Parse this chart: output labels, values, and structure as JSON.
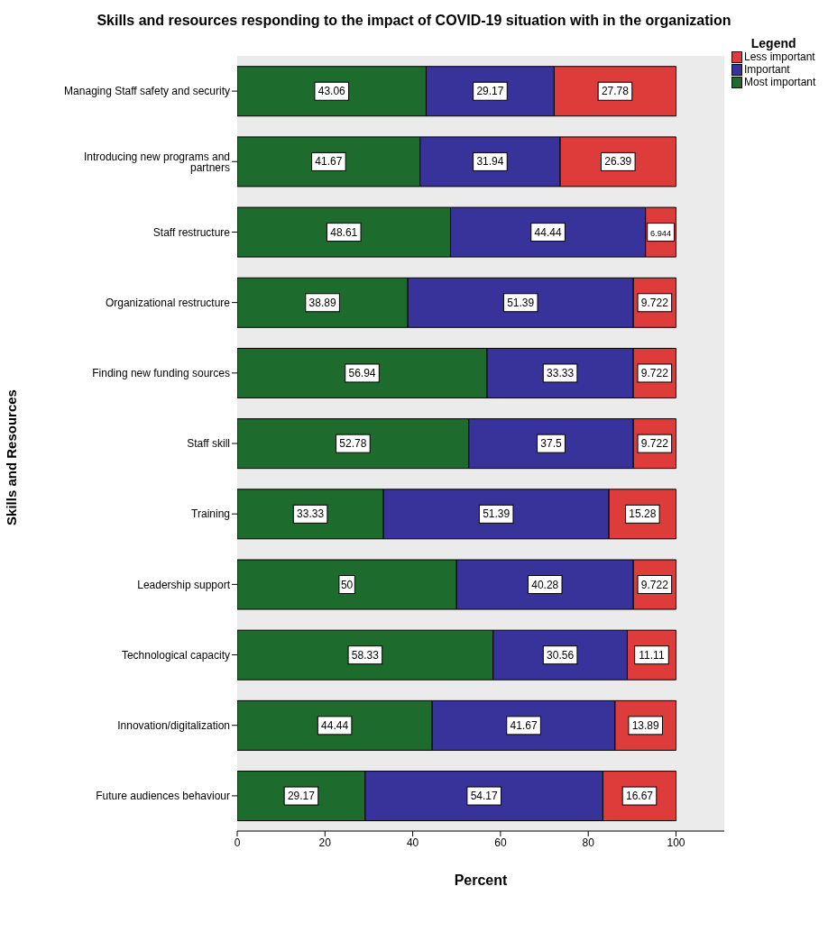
{
  "chart_data": {
    "type": "bar",
    "orientation": "horizontal",
    "stacked": true,
    "title": "Skills and resources responding to the impact of COVID-19 situation with in the organization",
    "xlabel": "Percent",
    "ylabel": "Skills and Resources",
    "legend_title": "Legend",
    "legend": "top right",
    "grid": false,
    "data_labels": true,
    "categories": [
      "Managing Staff safety and security",
      "Introducing new programs and partners",
      "Staff restructure",
      "Organizational restructure",
      "Finding new funding sources",
      "Staff skill",
      "Training",
      "Leadership support",
      "Technological capacity",
      "Innovation/digitalization",
      "Future audiences behaviour"
    ],
    "xlim": [
      0,
      111
    ],
    "xticks": [
      0,
      20,
      40,
      60,
      80,
      100
    ],
    "series": [
      {
        "name": "Most important",
        "color": "#1e6b2e",
        "values": [
          43.06,
          41.67,
          48.61,
          38.89,
          56.94,
          52.78,
          33.33,
          50,
          58.33,
          44.44,
          29.17
        ]
      },
      {
        "name": "Important",
        "color": "#38339a",
        "values": [
          29.17,
          31.94,
          44.44,
          51.39,
          33.33,
          37.5,
          51.39,
          40.28,
          30.56,
          41.67,
          54.17
        ]
      },
      {
        "name": "Less important",
        "color": "#de3b3b",
        "values": [
          27.78,
          26.39,
          6.944,
          9.722,
          9.722,
          9.722,
          15.28,
          9.722,
          11.11,
          13.89,
          16.67
        ]
      }
    ]
  }
}
